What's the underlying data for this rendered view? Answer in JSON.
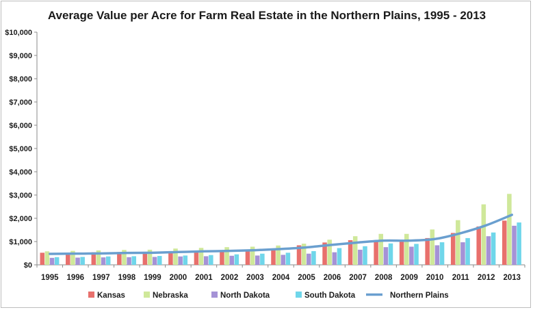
{
  "chart_data": {
    "type": "bar",
    "title": "Average Value per Acre for Farm Real Estate in the Northern Plains, 1995 - 2013",
    "xlabel": "",
    "ylabel": "",
    "ylim": [
      0,
      10000
    ],
    "yticks": [
      0,
      1000,
      2000,
      3000,
      4000,
      5000,
      6000,
      7000,
      8000,
      9000,
      10000
    ],
    "ytick_labels": [
      "$0",
      "$1,000",
      "$2,000",
      "$3,000",
      "$4,000",
      "$5,000",
      "$6,000",
      "$7,000",
      "$8,000",
      "$9,000",
      "$10,000"
    ],
    "grid": false,
    "legend_position": "bottom",
    "categories": [
      "1995",
      "1996",
      "1997",
      "1998",
      "1999",
      "2000",
      "2001",
      "2002",
      "2003",
      "2004",
      "2005",
      "2006",
      "2007",
      "2008",
      "2009",
      "2010",
      "2011",
      "2012",
      "2013"
    ],
    "series": [
      {
        "name": "Kansas",
        "kind": "bar",
        "color": "#e8706c",
        "values": [
          520,
          530,
          540,
          550,
          560,
          580,
          610,
          630,
          650,
          690,
          840,
          960,
          1060,
          1040,
          1050,
          1150,
          1370,
          1650,
          1900
        ]
      },
      {
        "name": "Nebraska",
        "kind": "bar",
        "color": "#cfe89a",
        "values": [
          580,
          600,
          620,
          640,
          650,
          700,
          730,
          760,
          780,
          830,
          910,
          1080,
          1230,
          1330,
          1330,
          1520,
          1920,
          2600,
          3050
        ]
      },
      {
        "name": "North Dakota",
        "kind": "bar",
        "color": "#a592d6",
        "values": [
          300,
          310,
          320,
          330,
          340,
          360,
          370,
          390,
          400,
          430,
          480,
          540,
          650,
          760,
          780,
          840,
          970,
          1230,
          1680
        ]
      },
      {
        "name": "South Dakota",
        "kind": "bar",
        "color": "#6fd6ea",
        "values": [
          330,
          340,
          360,
          370,
          380,
          400,
          420,
          450,
          480,
          520,
          590,
          720,
          800,
          920,
          900,
          970,
          1150,
          1390,
          1820
        ]
      },
      {
        "name": "Northern Plains",
        "kind": "line",
        "color": "#6a9fcf",
        "values": [
          470,
          480,
          490,
          510,
          520,
          550,
          580,
          600,
          630,
          680,
          750,
          860,
          960,
          1040,
          1040,
          1110,
          1360,
          1700,
          2150
        ]
      }
    ]
  }
}
